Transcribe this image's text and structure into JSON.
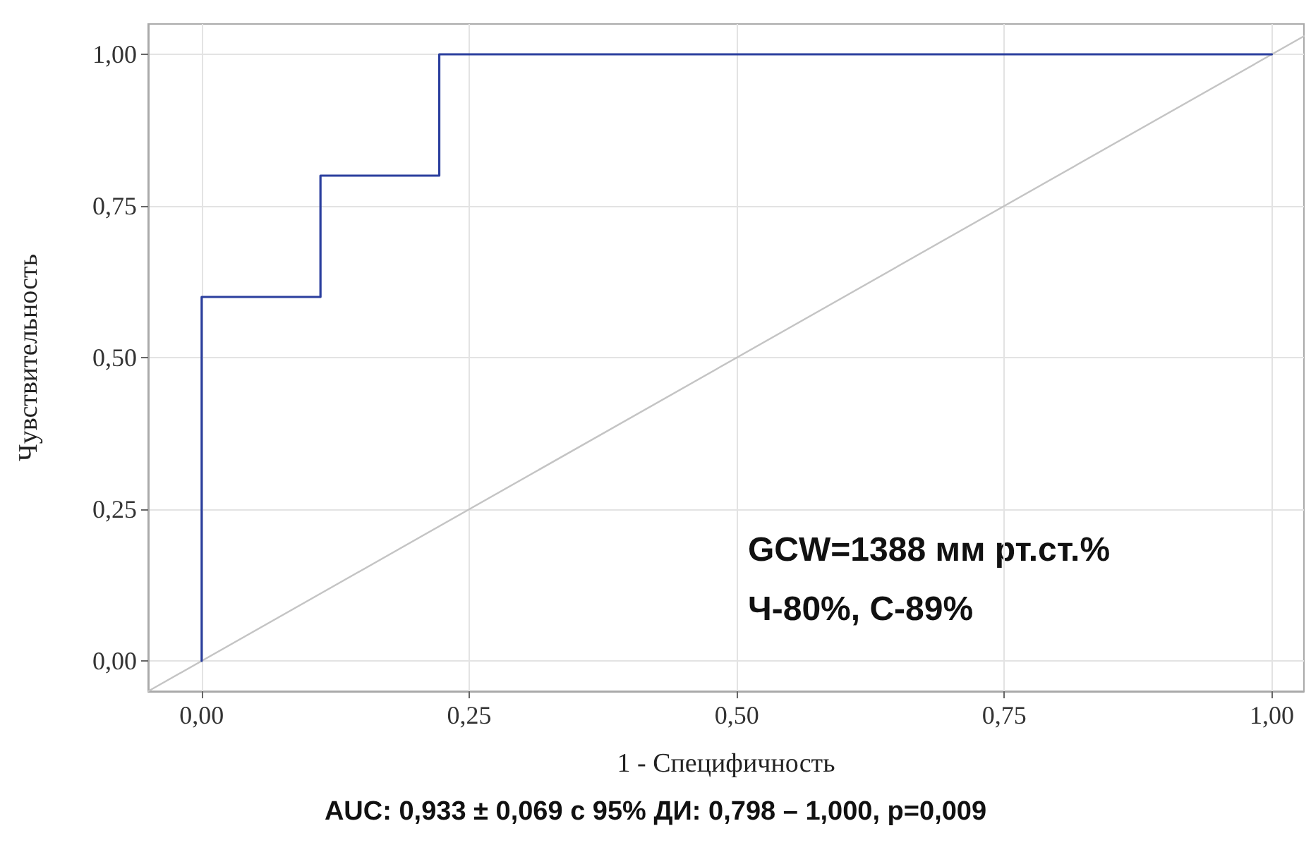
{
  "chart_data": {
    "type": "line",
    "xlabel": "1 - Специфичность",
    "ylabel": "Чувствительность",
    "series": [
      {
        "type": "step",
        "color": "#2b3f9e",
        "x": [
          0,
          0,
          0.111,
          0.222,
          1
        ],
        "values": [
          0,
          0.6,
          0.8,
          1,
          1
        ]
      },
      {
        "type": "line",
        "color": "#c4c4c4",
        "x": [
          -0.05,
          1.03
        ],
        "values": [
          -0.05,
          1.03
        ]
      }
    ],
    "xlim": [
      -0.05,
      1.03
    ],
    "ylim": [
      -0.05,
      1.05
    ],
    "xticks": [
      {
        "value": 0,
        "label": "0,00"
      },
      {
        "value": 0.25,
        "label": "0,25"
      },
      {
        "value": 0.5,
        "label": "0,50"
      },
      {
        "value": 0.75,
        "label": "0,75"
      },
      {
        "value": 1,
        "label": "1,00"
      }
    ],
    "yticks": [
      {
        "value": 0,
        "label": "0,00"
      },
      {
        "value": 0.25,
        "label": "0,25"
      },
      {
        "value": 0.5,
        "label": "0,50"
      },
      {
        "value": 0.75,
        "label": "0,75"
      },
      {
        "value": 1,
        "label": "1,00"
      }
    ],
    "grid": true,
    "marker": "none",
    "line_style": "solid",
    "annotations": [
      "GCW=1388 мм рт.ст.%",
      "Ч-80%, С-89%",
      "AUC: 0,933 ± 0,069 с 95% ДИ: 0,798 – 1,000, p=0,009"
    ]
  }
}
